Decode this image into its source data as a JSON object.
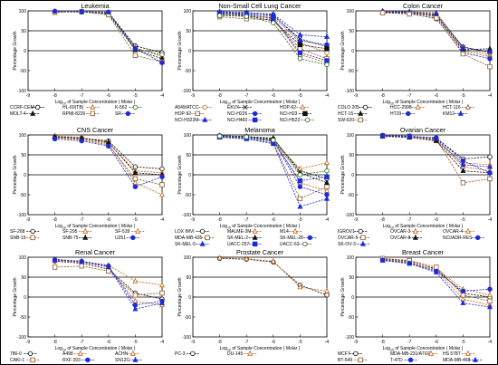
{
  "chart_data": [
    {
      "type": "line",
      "title": "Leukemia",
      "xlabel_main": "Log",
      "xlabel_sub": "10",
      "xlabel_rest": " of Sample Concentration ( Molar )",
      "ylabel": "Percentage Growth",
      "x": [
        -8,
        -7,
        -6,
        -5,
        -4
      ],
      "xlim": [
        -9,
        -4
      ],
      "ylim": [
        -100,
        100
      ],
      "yticks": [
        100,
        50,
        0,
        -50,
        -100
      ],
      "series": [
        {
          "name": "CCRF-CEM",
          "color": "#000000",
          "marker": "circle-open",
          "values": [
            98,
            97,
            96,
            12,
            -5
          ]
        },
        {
          "name": "HL-60(TB)",
          "color": "#c1661a",
          "marker": "triangle-open",
          "values": [
            99,
            98,
            95,
            8,
            -15
          ]
        },
        {
          "name": "K-562",
          "color": "#2f6b22",
          "marker": "circle-open",
          "values": [
            97,
            99,
            94,
            5,
            -10
          ]
        },
        {
          "name": "MOLT-4",
          "color": "#111111",
          "marker": "triangle",
          "values": [
            98,
            97,
            92,
            2,
            -20
          ]
        },
        {
          "name": "RPMI-8226",
          "color": "#8c5a2a",
          "marker": "square-open",
          "values": [
            96,
            98,
            90,
            -12,
            -28
          ]
        },
        {
          "name": "SR",
          "color": "#1f2bd6",
          "marker": "circle",
          "values": [
            99,
            98,
            97,
            6,
            -30
          ]
        }
      ],
      "legend_rows": [
        [
          "CCRF-CEM",
          "HL-60(TB)",
          "K-562"
        ],
        [
          "MOLT-4",
          "RPMI-8226",
          "SR"
        ]
      ]
    },
    {
      "type": "line",
      "title": "Non-Small Cell Lung Cancer",
      "xlabel_main": "Log",
      "xlabel_sub": "10",
      "xlabel_rest": " of Sample Concentration ( Molar )",
      "ylabel": "Percentage Growth",
      "x": [
        -8,
        -7,
        -6,
        -5,
        -4
      ],
      "xlim": [
        -9,
        -4
      ],
      "ylim": [
        -100,
        100
      ],
      "yticks": [
        100,
        50,
        0,
        -50,
        -100
      ],
      "series": [
        {
          "name": "A549/ATCC",
          "color": "#c1661a",
          "marker": "circle-open",
          "values": [
            92,
            90,
            85,
            20,
            -5
          ]
        },
        {
          "name": "EKVX",
          "color": "#111111",
          "marker": "x",
          "values": [
            96,
            94,
            88,
            30,
            10
          ]
        },
        {
          "name": "HOP-62",
          "color": "#c1661a",
          "marker": "triangle-open",
          "values": [
            90,
            88,
            80,
            -10,
            -30
          ]
        },
        {
          "name": "HOP-92",
          "color": "#8c5a2a",
          "marker": "square-open",
          "values": [
            85,
            80,
            78,
            5,
            -20
          ]
        },
        {
          "name": "NCI-H226",
          "color": "#1f2bd6",
          "marker": "circle",
          "values": [
            95,
            92,
            90,
            25,
            15
          ]
        },
        {
          "name": "NCI-H23",
          "color": "#111111",
          "marker": "square",
          "values": [
            93,
            88,
            75,
            15,
            5
          ]
        },
        {
          "name": "NCI-H322M",
          "color": "#1f2bd6",
          "marker": "triangle",
          "values": [
            98,
            96,
            92,
            40,
            35
          ]
        },
        {
          "name": "NCI-H460",
          "color": "#1f2bd6",
          "marker": "square",
          "values": [
            92,
            90,
            82,
            -5,
            -25
          ]
        },
        {
          "name": "NCI-H522",
          "color": "#2f6b22",
          "marker": "circle-open",
          "values": [
            88,
            86,
            70,
            -20,
            -35
          ]
        }
      ],
      "legend_rows": [
        [
          "A549/ATCC",
          "EKVX",
          "HOP-62"
        ],
        [
          "HOP-92",
          "NCI-H226",
          "NCI-H23"
        ],
        [
          "NCI-H322M",
          "NCI-H460",
          "NCI-H522"
        ]
      ]
    },
    {
      "type": "line",
      "title": "Colon Cancer",
      "xlabel_main": "Log",
      "xlabel_sub": "10",
      "xlabel_rest": " of Sample Concentration ( Molar )",
      "ylabel": "Percentage Growth",
      "x": [
        -8,
        -7,
        -6,
        -5,
        -4
      ],
      "xlim": [
        -9,
        -4
      ],
      "ylim": [
        -100,
        100
      ],
      "yticks": [
        100,
        50,
        0,
        -50,
        -100
      ],
      "series": [
        {
          "name": "COLO 205",
          "color": "#111111",
          "marker": "circle-open",
          "values": [
            98,
            96,
            90,
            10,
            -5
          ]
        },
        {
          "name": "HCC-2998",
          "color": "#c1661a",
          "marker": "triangle-open",
          "values": [
            99,
            97,
            92,
            5,
            -10
          ]
        },
        {
          "name": "HCT-116",
          "color": "#8c5a2a",
          "marker": "triangle-open",
          "values": [
            97,
            95,
            85,
            0,
            -15
          ]
        },
        {
          "name": "HCT-15",
          "color": "#111111",
          "marker": "triangle",
          "values": [
            98,
            96,
            88,
            2,
            5
          ]
        },
        {
          "name": "HT29",
          "color": "#1f2bd6",
          "marker": "circle",
          "values": [
            96,
            94,
            80,
            -5,
            -20
          ]
        },
        {
          "name": "KM12",
          "color": "#1f2bd6",
          "marker": "triangle",
          "values": [
            99,
            98,
            95,
            8,
            -2
          ]
        },
        {
          "name": "SW-620",
          "color": "#8c5a2a",
          "marker": "square-open",
          "values": [
            95,
            92,
            82,
            -8,
            -40
          ]
        }
      ],
      "legend_rows": [
        [
          "COLO 205",
          "HCC-2998",
          "HCT-116"
        ],
        [
          "HCT-15",
          "HT29",
          "KM12"
        ],
        [
          "SW-620"
        ]
      ]
    },
    {
      "type": "line",
      "title": "CNS Cancer",
      "xlabel_main": "Log",
      "xlabel_sub": "10",
      "xlabel_rest": " of Sample Concentration ( Molar )",
      "ylabel": "Percentage Growth",
      "x": [
        -8,
        -7,
        -6,
        -5,
        -4
      ],
      "xlim": [
        -9,
        -4
      ],
      "ylim": [
        -100,
        100
      ],
      "yticks": [
        100,
        50,
        0,
        -50,
        -100
      ],
      "series": [
        {
          "name": "SF-268",
          "color": "#111111",
          "marker": "circle-open",
          "values": [
            95,
            92,
            85,
            20,
            15
          ]
        },
        {
          "name": "SF-295",
          "color": "#c1661a",
          "marker": "triangle-open",
          "values": [
            97,
            94,
            80,
            10,
            5
          ]
        },
        {
          "name": "SF-539",
          "color": "#c1661a",
          "marker": "triangle-open",
          "values": [
            94,
            90,
            78,
            -20,
            -50
          ]
        },
        {
          "name": "SNB-19",
          "color": "#8c5a2a",
          "marker": "square-open",
          "values": [
            93,
            88,
            75,
            -10,
            -25
          ]
        },
        {
          "name": "SNB-75",
          "color": "#111111",
          "marker": "triangle",
          "values": [
            96,
            92,
            82,
            5,
            0
          ]
        },
        {
          "name": "U251",
          "color": "#1f2bd6",
          "marker": "circle",
          "values": [
            90,
            85,
            72,
            -30,
            -5
          ]
        }
      ],
      "legend_rows": [
        [
          "SF-268",
          "SF-295",
          "SF-539"
        ],
        [
          "SNB-19",
          "SNB-75",
          "U251"
        ]
      ]
    },
    {
      "type": "line",
      "title": "Melanoma",
      "xlabel_main": "Log",
      "xlabel_sub": "10",
      "xlabel_rest": " of Sample Concentration ( Molar )",
      "ylabel": "Percentage Growth",
      "x": [
        -8,
        -7,
        -6,
        -5,
        -4
      ],
      "xlim": [
        -9,
        -4
      ],
      "ylim": [
        -100,
        100
      ],
      "yticks": [
        100,
        50,
        0,
        -50,
        -100
      ],
      "series": [
        {
          "name": "LOX IMVI",
          "color": "#111111",
          "marker": "circle-open",
          "values": [
            98,
            96,
            90,
            10,
            -10
          ]
        },
        {
          "name": "MALME-3M",
          "color": "#c1661a",
          "marker": "triangle-open",
          "values": [
            97,
            95,
            88,
            -20,
            -40
          ]
        },
        {
          "name": "M14",
          "color": "#c1661a",
          "marker": "triangle-open",
          "values": [
            96,
            94,
            85,
            15,
            30
          ]
        },
        {
          "name": "MDA-MB-435",
          "color": "#8c5a2a",
          "marker": "square-open",
          "values": [
            95,
            92,
            80,
            -60,
            -30
          ]
        },
        {
          "name": "SK-MEL-2",
          "color": "#111111",
          "marker": "triangle",
          "values": [
            98,
            96,
            92,
            5,
            -20
          ]
        },
        {
          "name": "SK-MEL-28",
          "color": "#1f2bd6",
          "marker": "circle",
          "values": [
            97,
            94,
            86,
            -30,
            -50
          ]
        },
        {
          "name": "SK-MEL-5",
          "color": "#1f2bd6",
          "marker": "triangle",
          "values": [
            94,
            90,
            78,
            -80,
            -60
          ]
        },
        {
          "name": "UACC-257",
          "color": "#1f2bd6",
          "marker": "square",
          "values": [
            96,
            93,
            84,
            -15,
            -5
          ]
        },
        {
          "name": "UACC-62",
          "color": "#2f6b22",
          "marker": "circle-open",
          "values": [
            97,
            95,
            87,
            0,
            10
          ]
        }
      ],
      "legend_rows": [
        [
          "LOX IMVI",
          "MALME-3M",
          "M14"
        ],
        [
          "MDA-MB-435",
          "SK-MEL-2",
          "SK-MEL-28"
        ],
        [
          "SK-MEL-5",
          "UACC-257",
          "UACC-62"
        ]
      ]
    },
    {
      "type": "line",
      "title": "Ovarian Cancer",
      "xlabel_main": "Log",
      "xlabel_sub": "10",
      "xlabel_rest": " of Sample Concentration ( Molar )",
      "ylabel": "Percentage Growth",
      "x": [
        -8,
        -7,
        -6,
        -5,
        -4
      ],
      "xlim": [
        -9,
        -4
      ],
      "ylim": [
        -100,
        100
      ],
      "yticks": [
        100,
        50,
        0,
        -50,
        -100
      ],
      "series": [
        {
          "name": "IGROV1",
          "color": "#111111",
          "marker": "circle-open",
          "values": [
            98,
            96,
            92,
            40,
            45
          ]
        },
        {
          "name": "OVCAR-3",
          "color": "#c1661a",
          "marker": "triangle-open",
          "values": [
            97,
            95,
            88,
            20,
            10
          ]
        },
        {
          "name": "OVCAR-4",
          "color": "#c1661a",
          "marker": "triangle-open",
          "values": [
            96,
            94,
            86,
            30,
            25
          ]
        },
        {
          "name": "OVCAR-5",
          "color": "#8c5a2a",
          "marker": "square-open",
          "values": [
            98,
            97,
            90,
            -20,
            -10
          ]
        },
        {
          "name": "OVCAR-8",
          "color": "#111111",
          "marker": "triangle",
          "values": [
            97,
            94,
            85,
            10,
            5
          ]
        },
        {
          "name": "NCI/ADR-RES",
          "color": "#1f2bd6",
          "marker": "circle",
          "values": [
            99,
            97,
            93,
            35,
            5
          ]
        },
        {
          "name": "SK-OV-3",
          "color": "#1f2bd6",
          "marker": "triangle",
          "values": [
            98,
            96,
            91,
            25,
            20
          ]
        }
      ],
      "legend_rows": [
        [
          "IGROV1",
          "OVCAR-3",
          "OVCAR-4"
        ],
        [
          "OVCAR-5",
          "OVCAR-8",
          "NCI/ADR-RES"
        ],
        [
          "SK-OV-3"
        ]
      ]
    },
    {
      "type": "line",
      "title": "Renal Cancer",
      "xlabel_main": "Log",
      "xlabel_sub": "10",
      "xlabel_rest": " of Sample Concentration ( Molar )",
      "ylabel": "Percentage Growth",
      "x": [
        -8,
        -7,
        -6,
        -5,
        -4
      ],
      "xlim": [
        -9,
        -4
      ],
      "ylim": [
        -100,
        100
      ],
      "yticks": [
        100,
        50,
        0,
        -50,
        -100
      ],
      "series": [
        {
          "name": "786-0",
          "color": "#111111",
          "marker": "circle-open",
          "values": [
            90,
            85,
            70,
            10,
            -5
          ]
        },
        {
          "name": "A498",
          "color": "#c1661a",
          "marker": "triangle-open",
          "values": [
            95,
            90,
            80,
            40,
            30
          ]
        },
        {
          "name": "ACHN",
          "color": "#c1661a",
          "marker": "triangle-open",
          "values": [
            92,
            88,
            75,
            -10,
            -20
          ]
        },
        {
          "name": "CAKI-1",
          "color": "#8c5a2a",
          "marker": "square-open",
          "values": [
            75,
            78,
            65,
            5,
            10
          ]
        },
        {
          "name": "RXF 393",
          "color": "#1f2bd6",
          "marker": "circle",
          "values": [
            94,
            90,
            78,
            -20,
            -10
          ]
        },
        {
          "name": "SN12C",
          "color": "#1f2bd6",
          "marker": "triangle",
          "values": [
            93,
            89,
            76,
            -30,
            -15
          ]
        }
      ],
      "legend_rows": [
        [
          "786-0",
          "A498",
          "ACHN"
        ],
        [
          "CAKI-1",
          "RXF 393",
          "SN12C"
        ]
      ]
    },
    {
      "type": "line",
      "title": "Prostate Cancer",
      "xlabel_main": "Log",
      "xlabel_sub": "10",
      "xlabel_rest": " of Sample Concentration ( Molar )",
      "ylabel": "Percentage Growth",
      "x": [
        -8,
        -7,
        -6,
        -5,
        -4
      ],
      "xlim": [
        -9,
        -4
      ],
      "ylim": [
        -100,
        100
      ],
      "yticks": [
        100,
        50,
        0,
        -50,
        -100
      ],
      "series": [
        {
          "name": "PC-3",
          "color": "#111111",
          "marker": "circle-open",
          "values": [
            97,
            95,
            88,
            30,
            5
          ]
        },
        {
          "name": "DU-145",
          "color": "#c1661a",
          "marker": "triangle-open",
          "values": [
            98,
            96,
            90,
            25,
            15
          ]
        }
      ],
      "legend_rows": [
        [
          "PC-3",
          "DU-145"
        ]
      ]
    },
    {
      "type": "line",
      "title": "Breast Cancer",
      "xlabel_main": "Log",
      "xlabel_sub": "10",
      "xlabel_rest": " of Sample Concentration ( Molar )",
      "ylabel": "Percentage Growth",
      "x": [
        -8,
        -7,
        -6,
        -5,
        -4
      ],
      "xlim": [
        -9,
        -4
      ],
      "ylim": [
        -100,
        100
      ],
      "yticks": [
        100,
        50,
        0,
        -50,
        -100
      ],
      "series": [
        {
          "name": "MCF7",
          "color": "#111111",
          "marker": "circle-open",
          "values": [
            96,
            90,
            70,
            10,
            0
          ]
        },
        {
          "name": "MDA-MB-231/ATCC",
          "color": "#c1661a",
          "marker": "triangle-open",
          "values": [
            95,
            88,
            72,
            20,
            5
          ]
        },
        {
          "name": "HS 578T",
          "color": "#c1661a",
          "marker": "triangle-open",
          "values": [
            94,
            86,
            68,
            -5,
            -20
          ]
        },
        {
          "name": "BT-549",
          "color": "#8c5a2a",
          "marker": "square-open",
          "values": [
            97,
            92,
            75,
            5,
            -10
          ]
        },
        {
          "name": "T-47D",
          "color": "#1f2bd6",
          "marker": "circle",
          "values": [
            93,
            85,
            65,
            15,
            20
          ]
        },
        {
          "name": "MDA-MB-468",
          "color": "#1f2bd6",
          "marker": "triangle",
          "values": [
            92,
            84,
            62,
            -15,
            -25
          ]
        }
      ],
      "legend_rows": [
        [
          "MCF7",
          "MDA-MB-231/ATCC",
          "HS 578T"
        ],
        [
          "BT-549",
          "T-47D",
          "MDA-MB-468"
        ]
      ]
    }
  ]
}
